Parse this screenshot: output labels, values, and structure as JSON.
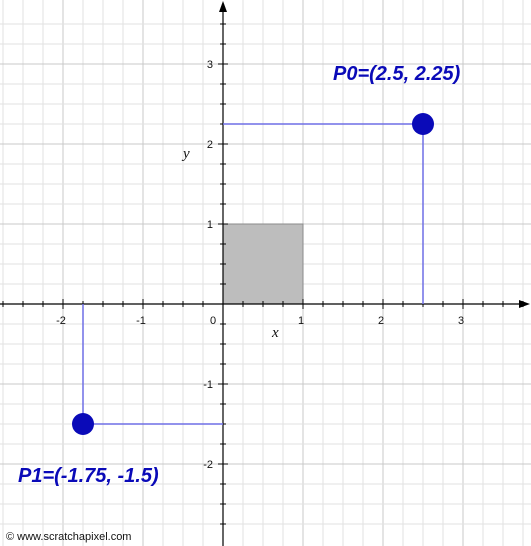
{
  "plot": {
    "x_range": [
      -2.75,
      3.85
    ],
    "y_range": [
      -2.85,
      3.5
    ],
    "minor_step": 0.25,
    "colors": {
      "minor_grid": "#e2e2e2",
      "major_grid": "#c8c8c8",
      "axis": "#000000",
      "square_fill": "#bdbdbd",
      "square_stroke": "#8a8a8a",
      "projection": "#6f6fe6",
      "point": "#0a0ab8"
    },
    "x_ticks": [
      {
        "value": -2,
        "label": "-2"
      },
      {
        "value": -1,
        "label": "-1"
      },
      {
        "value": 0,
        "label": "0"
      },
      {
        "value": 1,
        "label": "1"
      },
      {
        "value": 2,
        "label": "2"
      },
      {
        "value": 3,
        "label": "3"
      }
    ],
    "y_ticks": [
      {
        "value": 3,
        "label": "3"
      },
      {
        "value": 2,
        "label": "2"
      },
      {
        "value": 1,
        "label": "1"
      },
      {
        "value": -1,
        "label": "-1"
      },
      {
        "value": -2,
        "label": "-2"
      }
    ],
    "x_axis_label": "x",
    "y_axis_label": "y",
    "unit_square": {
      "x0": 0,
      "y0": 0,
      "x1": 1,
      "y1": 1
    },
    "points": [
      {
        "id": "p0",
        "x": 2.5,
        "y": 2.25,
        "label": "P0=(2.5, 2.25)"
      },
      {
        "id": "p1",
        "x": -1.75,
        "y": -1.5,
        "label": "P1=(-1.75, -1.5)"
      }
    ]
  },
  "footer": {
    "credit": "© www.scratchapixel.com"
  }
}
